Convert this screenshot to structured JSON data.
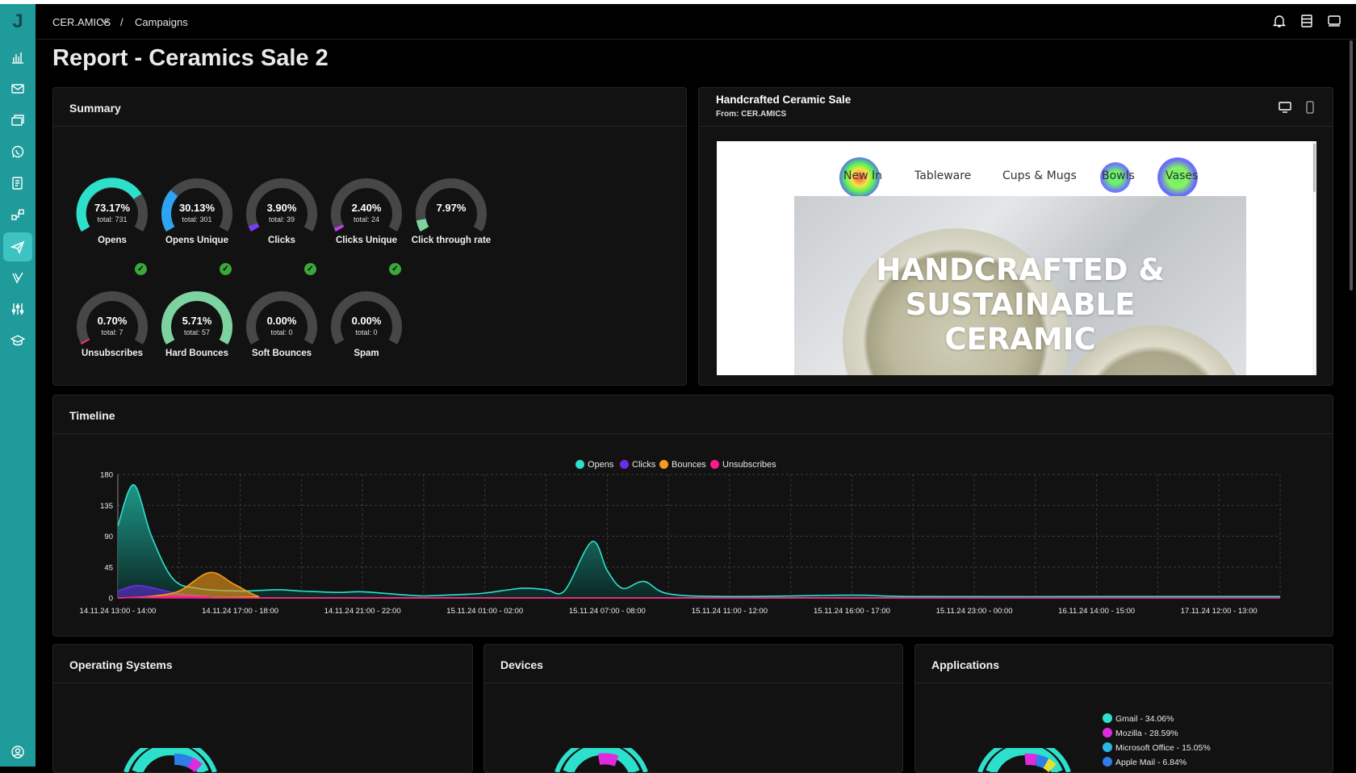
{
  "app": {
    "logo": "J"
  },
  "breadcrumb": {
    "org": "CER.AMICS",
    "separator": "/",
    "section": "Campaigns"
  },
  "page": {
    "title": "Report - Ceramics Sale 2"
  },
  "summary": {
    "title": "Summary",
    "metrics": [
      {
        "value": "73.17%",
        "total": "total: 731",
        "label": "Opens",
        "pct": 73.17,
        "color": "#2de0cc"
      },
      {
        "value": "30.13%",
        "total": "total: 301",
        "label": "Opens Unique",
        "pct": 30.13,
        "color": "#2ea3f2"
      },
      {
        "value": "3.90%",
        "total": "total: 39",
        "label": "Clicks",
        "pct": 3.9,
        "color": "#7a3cf0"
      },
      {
        "value": "2.40%",
        "total": "total: 24",
        "label": "Clicks Unique",
        "pct": 2.4,
        "color": "#c23cf0"
      },
      {
        "value": "7.97%",
        "total": "",
        "label": "Click through rate",
        "pct": 7.97,
        "color": "#7dd3a0"
      },
      {
        "value": "0.70%",
        "total": "total: 7",
        "label": "Unsubscribes",
        "pct": 0.7,
        "color": "#ff2a8a"
      },
      {
        "value": "5.71%",
        "total": "total: 57",
        "label": "Hard Bounces",
        "pct": 100,
        "color": "#7dd3a0"
      },
      {
        "value": "0.00%",
        "total": "total: 0",
        "label": "Soft Bounces",
        "pct": 0,
        "color": "#7dd3a0"
      },
      {
        "value": "0.00%",
        "total": "total: 0",
        "label": "Spam",
        "pct": 0,
        "color": "#7dd3a0"
      }
    ]
  },
  "preview": {
    "title": "Handcrafted Ceramic Sale",
    "from": "From: CER.AMICS",
    "nav": [
      "New In",
      "Tableware",
      "Cups & Mugs",
      "Bowls",
      "Vases"
    ],
    "hero_line1": "HANDCRAFTED &",
    "hero_line2": "SUSTAINABLE",
    "hero_line3": "CERAMIC"
  },
  "timeline": {
    "title": "Timeline",
    "legend": [
      {
        "name": "Opens",
        "color": "#2de0cc"
      },
      {
        "name": "Clicks",
        "color": "#6a2ee8"
      },
      {
        "name": "Bounces",
        "color": "#f59c1a"
      },
      {
        "name": "Unsubscribes",
        "color": "#ff1a8c"
      }
    ]
  },
  "chart_data": {
    "type": "area",
    "x": [
      "14.11.24 13:00 - 14:00",
      "14.11.24 17:00 - 18:00",
      "14.11.24 21:00 - 22:00",
      "15.11.24 01:00 - 02:00",
      "15.11.24 07:00 - 08:00",
      "15.11.24 11:00 - 12:00",
      "15.11.24 16:00 - 17:00",
      "15.11.24 23:00 - 00:00",
      "16.11.24 14:00 - 15:00",
      "17.11.24 12:00 - 13:00"
    ],
    "yticks": [
      0,
      45,
      90,
      135,
      180
    ],
    "ylim": [
      0,
      180
    ],
    "grid": true,
    "legend_position": "top-center",
    "series": [
      {
        "name": "Opens",
        "points": [
          [
            0,
            105
          ],
          [
            0.26,
            165
          ],
          [
            0.55,
            90
          ],
          [
            0.9,
            28
          ],
          [
            1.3,
            14
          ],
          [
            2,
            10
          ],
          [
            2.6,
            12
          ],
          [
            3,
            10
          ],
          [
            3.6,
            8
          ],
          [
            4,
            9
          ],
          [
            4.6,
            5
          ],
          [
            5,
            3
          ],
          [
            5.6,
            5
          ],
          [
            6,
            7
          ],
          [
            6.6,
            14
          ],
          [
            7,
            12
          ],
          [
            7.3,
            10
          ],
          [
            7.75,
            82
          ],
          [
            8,
            40
          ],
          [
            8.25,
            14
          ],
          [
            8.6,
            24
          ],
          [
            9,
            6
          ],
          [
            10,
            2
          ],
          [
            12,
            4
          ],
          [
            13,
            2
          ],
          [
            16,
            2
          ],
          [
            19,
            2
          ]
        ]
      },
      {
        "name": "Clicks",
        "points": [
          [
            0,
            10
          ],
          [
            0.3,
            18
          ],
          [
            0.6,
            14
          ],
          [
            1,
            6
          ],
          [
            1.5,
            2
          ],
          [
            2,
            0
          ],
          [
            19,
            0
          ]
        ]
      },
      {
        "name": "Bounces",
        "points": [
          [
            0,
            0
          ],
          [
            0.5,
            2
          ],
          [
            1,
            10
          ],
          [
            1.5,
            37
          ],
          [
            1.9,
            20
          ],
          [
            2.3,
            2
          ],
          [
            2.6,
            0
          ],
          [
            19,
            0
          ]
        ]
      },
      {
        "name": "Unsubscribes",
        "points": [
          [
            0,
            0
          ],
          [
            0.5,
            1
          ],
          [
            1,
            2
          ],
          [
            1.5,
            1
          ],
          [
            2,
            0
          ],
          [
            19,
            0
          ]
        ]
      }
    ]
  },
  "os": {
    "title": "Operating Systems"
  },
  "devices": {
    "title": "Devices"
  },
  "applications": {
    "title": "Applications",
    "legend": [
      {
        "label": "Gmail - 34.06%",
        "color": "#2de0cc"
      },
      {
        "label": "Mozilla - 28.59%",
        "color": "#e02ae0"
      },
      {
        "label": "Microsoft Office - 15.05%",
        "color": "#2ab8e0"
      },
      {
        "label": "Apple Mail - 6.84%",
        "color": "#2e7de8"
      }
    ]
  }
}
